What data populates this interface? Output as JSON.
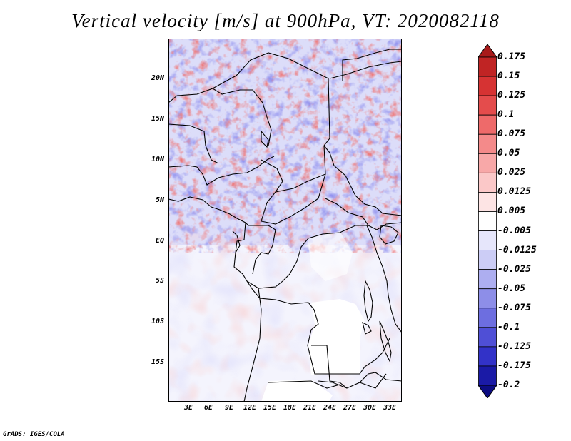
{
  "title": "Vertical velocity [m/s] at 900hPa, VT: 2020082118",
  "credit": "GrADS: IGES/COLA",
  "map": {
    "variable": "Vertical velocity",
    "units": "m/s",
    "level": "900hPa",
    "valid_time": "2020082118",
    "lat_labels": [
      "20N",
      "15N",
      "10N",
      "5N",
      "EQ",
      "5S",
      "10S",
      "15S"
    ],
    "lon_labels": [
      "3E",
      "6E",
      "9E",
      "12E",
      "15E",
      "18E",
      "21E",
      "24E",
      "27E",
      "30E",
      "33E"
    ]
  },
  "colorbar": {
    "levels": [
      "0.175",
      "0.15",
      "0.125",
      "0.1",
      "0.075",
      "0.05",
      "0.025",
      "0.0125",
      "0.005",
      "-0.005",
      "-0.0125",
      "-0.025",
      "-0.05",
      "-0.075",
      "-0.1",
      "-0.125",
      "-0.175",
      "-0.2"
    ],
    "colors": [
      "#a81a1a",
      "#c02424",
      "#d63333",
      "#e44c4c",
      "#ee6a6a",
      "#f48a8a",
      "#f8a8a8",
      "#fbc8c8",
      "#fde4e4",
      "#ffffff",
      "#e6e6fb",
      "#cccdf6",
      "#adaef0",
      "#8d8ee8",
      "#6d6ee0",
      "#4f4fd6",
      "#3232c8",
      "#1a1aa6",
      "#0c0c82"
    ]
  }
}
